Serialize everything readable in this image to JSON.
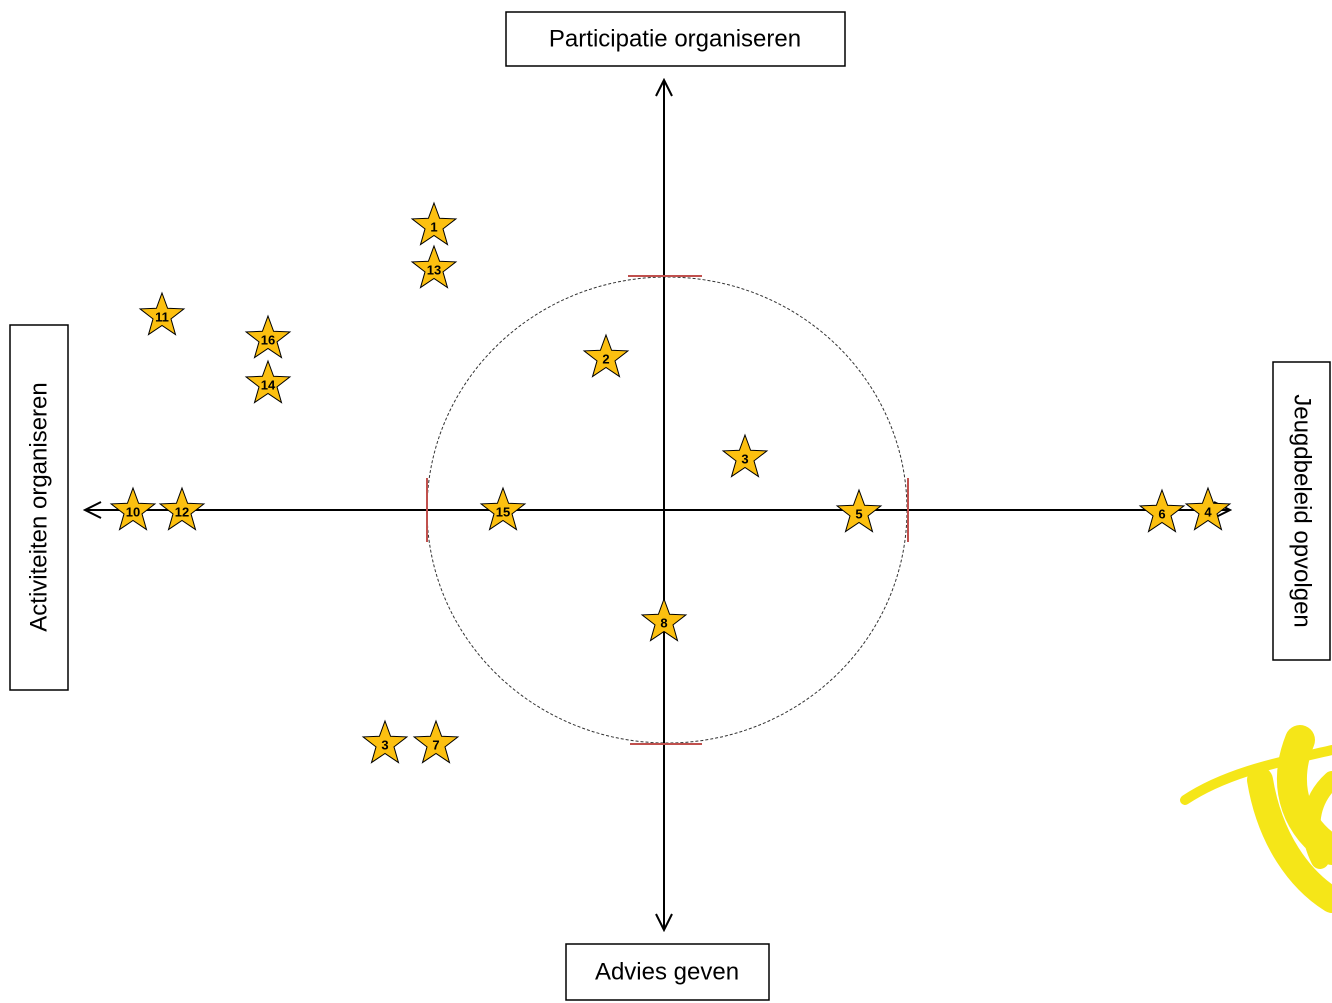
{
  "axes": {
    "top": "Participatie organiseren",
    "bottom": "Advies geven",
    "left": "Activiteiten organiseren",
    "right": "Jeugdbeleid opvolgen"
  },
  "stars": [
    {
      "label": "1"
    },
    {
      "label": "13"
    },
    {
      "label": "11"
    },
    {
      "label": "16"
    },
    {
      "label": "14"
    },
    {
      "label": "2"
    },
    {
      "label": "3"
    },
    {
      "label": "10"
    },
    {
      "label": "12"
    },
    {
      "label": "15"
    },
    {
      "label": "5"
    },
    {
      "label": "6"
    },
    {
      "label": "4"
    },
    {
      "label": "8"
    },
    {
      "label": "3"
    },
    {
      "label": "7"
    }
  ]
}
